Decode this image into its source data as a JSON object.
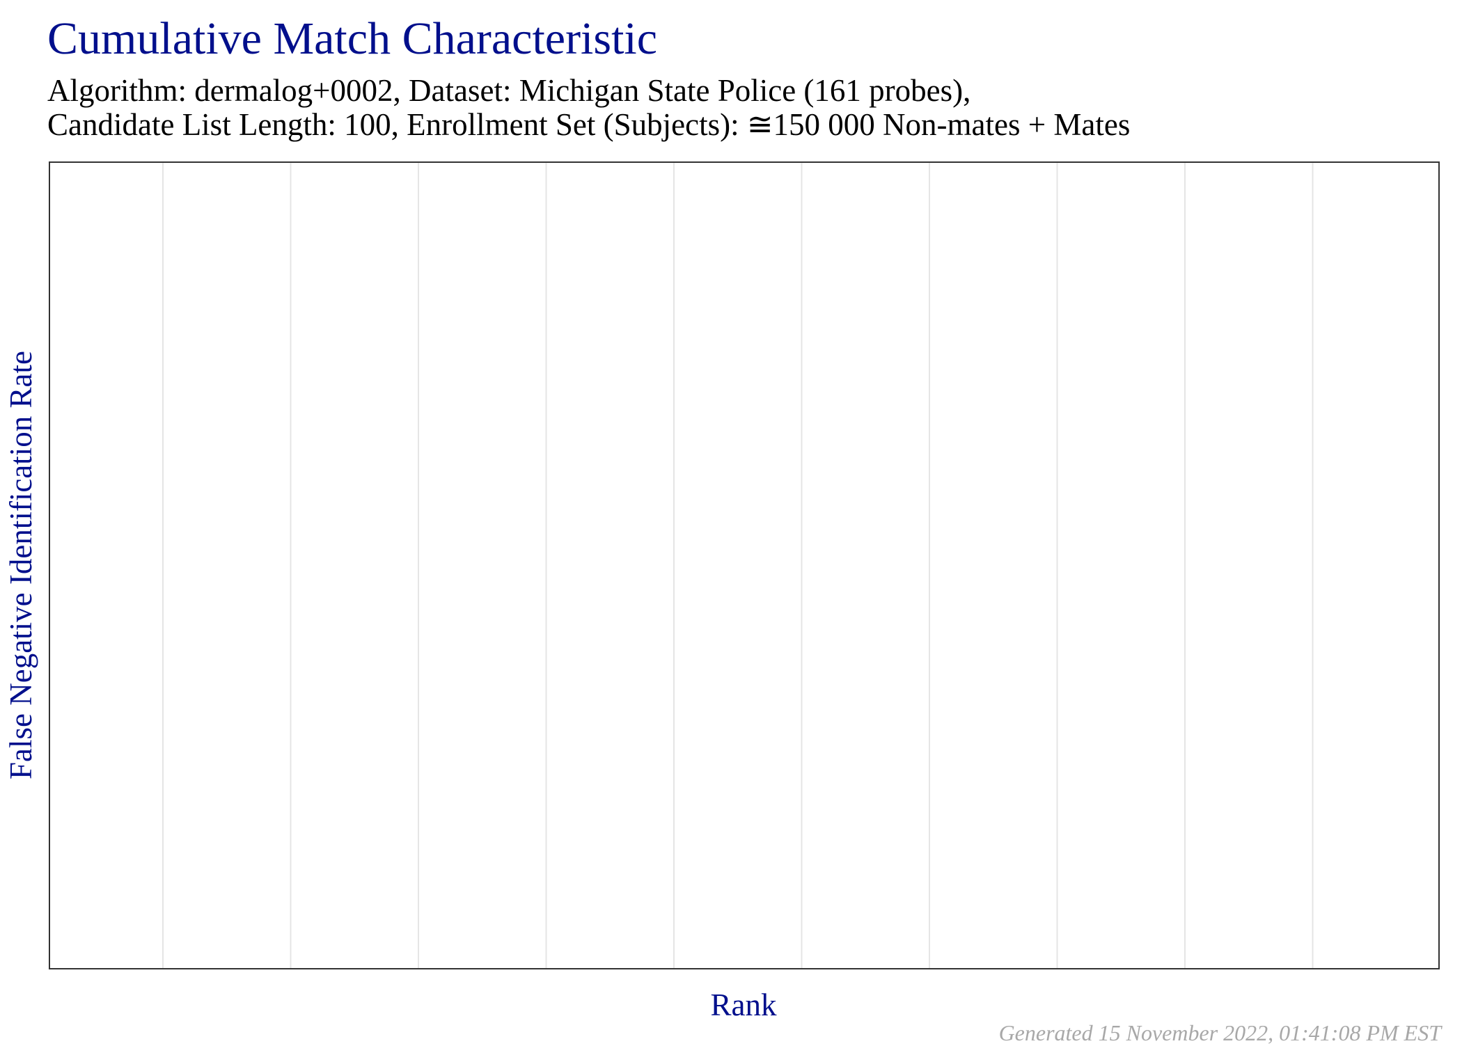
{
  "chart_data": {
    "type": "line",
    "title": "Cumulative Match Characteristic",
    "subtitle_lines": [
      "Algorithm: dermalog+0002, Dataset: Michigan State Police (161 probes),",
      "Candidate List Length: 100, Enrollment Set (Subjects): ≅150 000 Non-mates + Mates"
    ],
    "xlabel": "Rank",
    "ylabel": "False Negative Identification Rate",
    "series": [],
    "grid": true,
    "vertical_gridline_count": 10,
    "legend": "none",
    "colors": {
      "title": "#000f8c",
      "axis_label": "#000f8c",
      "gridline": "#e5e5e5",
      "panel_border": "#333333",
      "footer": "#a8a8a8"
    }
  },
  "footer": "Generated 15 November 2022, 01:41:08 PM EST"
}
